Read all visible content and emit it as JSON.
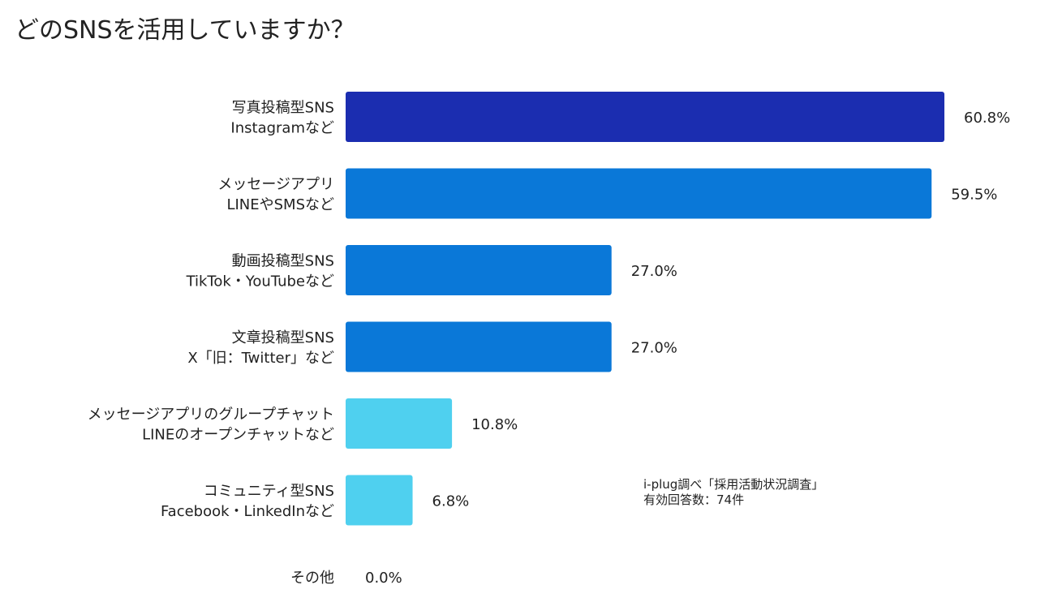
{
  "chart_data": {
    "type": "bar",
    "orientation": "horizontal",
    "title": "どのSNSを活用していますか？",
    "xlabel": "",
    "ylabel": "",
    "xlim": [
      0,
      65
    ],
    "grid": false,
    "legend": "none",
    "categories": [
      [
        "写真投稿型SNS",
        "Instagramなど"
      ],
      [
        "メッセージアプリ",
        "LINEやSMSなど"
      ],
      [
        "動画投稿型SNS",
        "TikTok・YouTubeなど"
      ],
      [
        "文章投稿型SNS",
        "X「旧：Twitter」など"
      ],
      [
        "メッセージアプリのグループチャット",
        "LINEのオープンチャットなど"
      ],
      [
        "コミュニティ型SNS",
        "Facebook・LinkedInなど"
      ],
      [
        "その他"
      ]
    ],
    "values": [
      60.8,
      59.5,
      27.0,
      27.0,
      10.8,
      6.8,
      0.0
    ],
    "value_labels": [
      "60.8%",
      "59.5%",
      "27.0%",
      "27.0%",
      "10.8%",
      "6.8%",
      "0.0%"
    ],
    "colors": [
      "#1b2db0",
      "#0a78d8",
      "#0a78d8",
      "#0a78d8",
      "#4fd0ef",
      "#4fd0ef",
      "#4fd0ef"
    ]
  },
  "note": {
    "line1": "i-plug調べ「採用活動状況調査」",
    "line2": "有効回答数：74件"
  }
}
